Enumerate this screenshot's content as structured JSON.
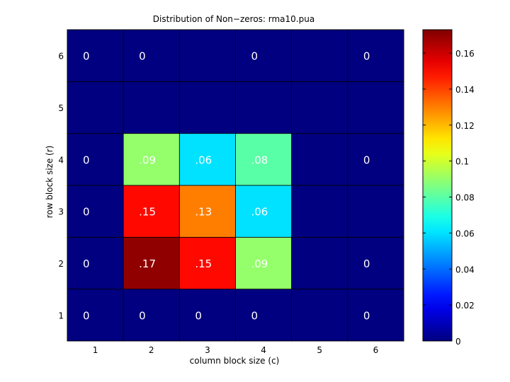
{
  "chart_data": {
    "type": "heatmap",
    "title": "Distribution of Non−zeros: rma10.pua",
    "xlabel": "column block size (c)",
    "ylabel": "row block size (r)",
    "x_categories": [
      "1",
      "2",
      "3",
      "4",
      "5",
      "6"
    ],
    "y_categories": [
      "1",
      "2",
      "3",
      "4",
      "5",
      "6"
    ],
    "values": [
      [
        0,
        0,
        0,
        0,
        0,
        0
      ],
      [
        0,
        0.17,
        0.15,
        0.09,
        0.0,
        0
      ],
      [
        0,
        0.15,
        0.13,
        0.06,
        0.0,
        0.0
      ],
      [
        0,
        0.09,
        0.06,
        0.08,
        0.0,
        0
      ],
      [
        0.0,
        0.0,
        0.0,
        0.0,
        0.0,
        0.0
      ],
      [
        0,
        0,
        0.0,
        0,
        0.0,
        0
      ]
    ],
    "cell_labels": [
      [
        "0",
        "0",
        "0",
        "0",
        "",
        "0"
      ],
      [
        "0",
        ".17",
        ".15",
        ".09",
        "",
        "0"
      ],
      [
        "0",
        ".15",
        ".13",
        ".06",
        "",
        ""
      ],
      [
        "0",
        ".09",
        ".06",
        ".08",
        "",
        "0"
      ],
      [
        "",
        "",
        "",
        "",
        "",
        ""
      ],
      [
        "0",
        "0",
        "",
        "0",
        "",
        "0"
      ]
    ],
    "colorbar": {
      "colormap": "jet",
      "range": [
        0,
        0.173
      ],
      "ticks": [
        0,
        0.02,
        0.04,
        0.06,
        0.08,
        0.1,
        0.12,
        0.14,
        0.16
      ],
      "tick_labels": [
        "0",
        "0.02",
        "0.04",
        "0.06",
        "0.08",
        "0.1",
        "0.12",
        "0.14",
        "0.16"
      ]
    },
    "grid": true
  }
}
